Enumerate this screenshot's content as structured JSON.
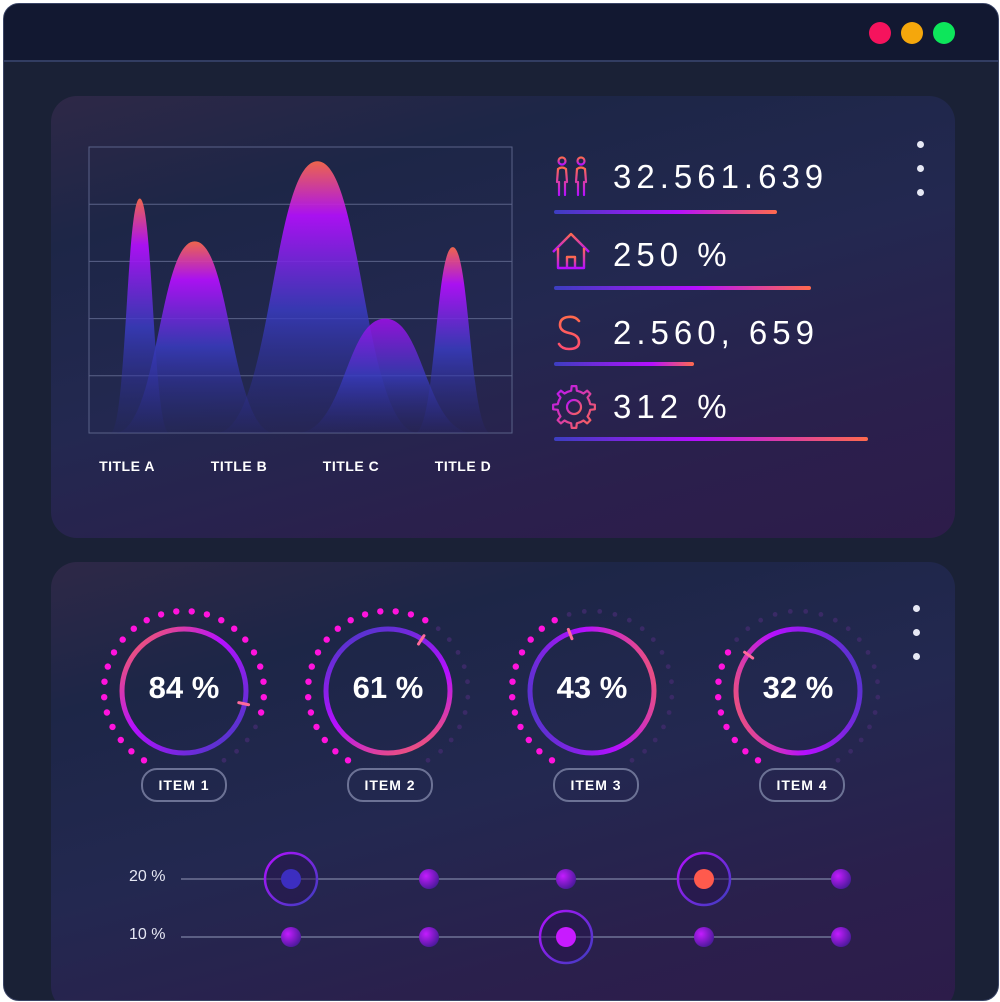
{
  "window": {
    "controls": [
      "close",
      "minimize",
      "maximize"
    ]
  },
  "top_card": {
    "chart_data": {
      "type": "area",
      "categories": [
        "TITLE A",
        "TITLE B",
        "TITLE C",
        "TITLE D"
      ],
      "series_peaks": [
        82,
        67,
        95,
        65,
        40
      ],
      "ylim": [
        0,
        100
      ],
      "grid": true
    },
    "stats": [
      {
        "icon": "people-icon",
        "value": "32.561.639",
        "bar": 0.76
      },
      {
        "icon": "house-icon",
        "value": "250 %",
        "bar": 0.87
      },
      {
        "icon": "dollar-icon",
        "value": "2.560, 659",
        "bar": 0.47
      },
      {
        "icon": "gear-icon",
        "value": "312 %",
        "bar": 1.0
      }
    ]
  },
  "bottom_card": {
    "gauges": [
      {
        "value": "84 %",
        "percent": 84,
        "label": "ITEM 1"
      },
      {
        "value": "61 %",
        "percent": 61,
        "label": "ITEM 2"
      },
      {
        "value": "43 %",
        "percent": 43,
        "label": "ITEM 3"
      },
      {
        "value": "32 %",
        "percent": 32,
        "label": "ITEM 4"
      }
    ],
    "sliders": [
      {
        "label": "20 %",
        "selected_stops": [
          0,
          3
        ]
      },
      {
        "label": "10 %",
        "selected_stops": [
          2
        ]
      }
    ]
  },
  "colors": {
    "accent_orange": "#ff6a4d",
    "accent_purple": "#b50fff",
    "accent_blue": "#3c3ec0",
    "accent_magenta": "#ff13dd"
  }
}
